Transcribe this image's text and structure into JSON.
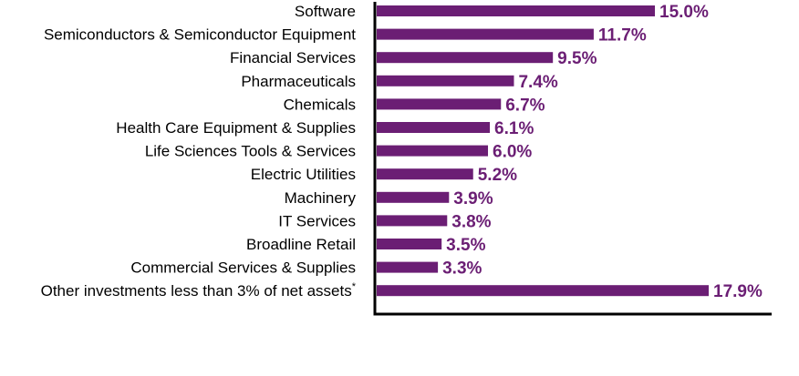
{
  "chart_data": {
    "type": "bar",
    "orientation": "horizontal",
    "title": "",
    "xlabel": "",
    "ylabel": "",
    "categories": [
      "Software",
      "Semiconductors & Semiconductor Equipment",
      "Financial Services",
      "Pharmaceuticals",
      "Chemicals",
      "Health Care Equipment & Supplies",
      "Life Sciences Tools & Services",
      "Electric Utilities",
      "Machinery",
      "IT Services",
      "Broadline Retail",
      "Commercial Services & Supplies",
      "Other investments less than 3% of net assets"
    ],
    "category_superscripts": [
      "",
      "",
      "",
      "",
      "",
      "",
      "",
      "",
      "",
      "",
      "",
      "",
      "*"
    ],
    "values": [
      15.0,
      11.7,
      9.5,
      7.4,
      6.7,
      6.1,
      6.0,
      5.2,
      3.9,
      3.8,
      3.5,
      3.3,
      17.9
    ],
    "value_labels": [
      "15.0%",
      "11.7%",
      "9.5%",
      "7.4%",
      "6.7%",
      "6.1%",
      "6.0%",
      "5.2%",
      "3.9%",
      "3.8%",
      "3.5%",
      "3.3%",
      "17.9%"
    ],
    "xlim": [
      0,
      21.3
    ],
    "grid": false,
    "legend": "none",
    "bar_color": "#6B1E74",
    "axis_color": "#000000",
    "label_color": "#000000"
  }
}
